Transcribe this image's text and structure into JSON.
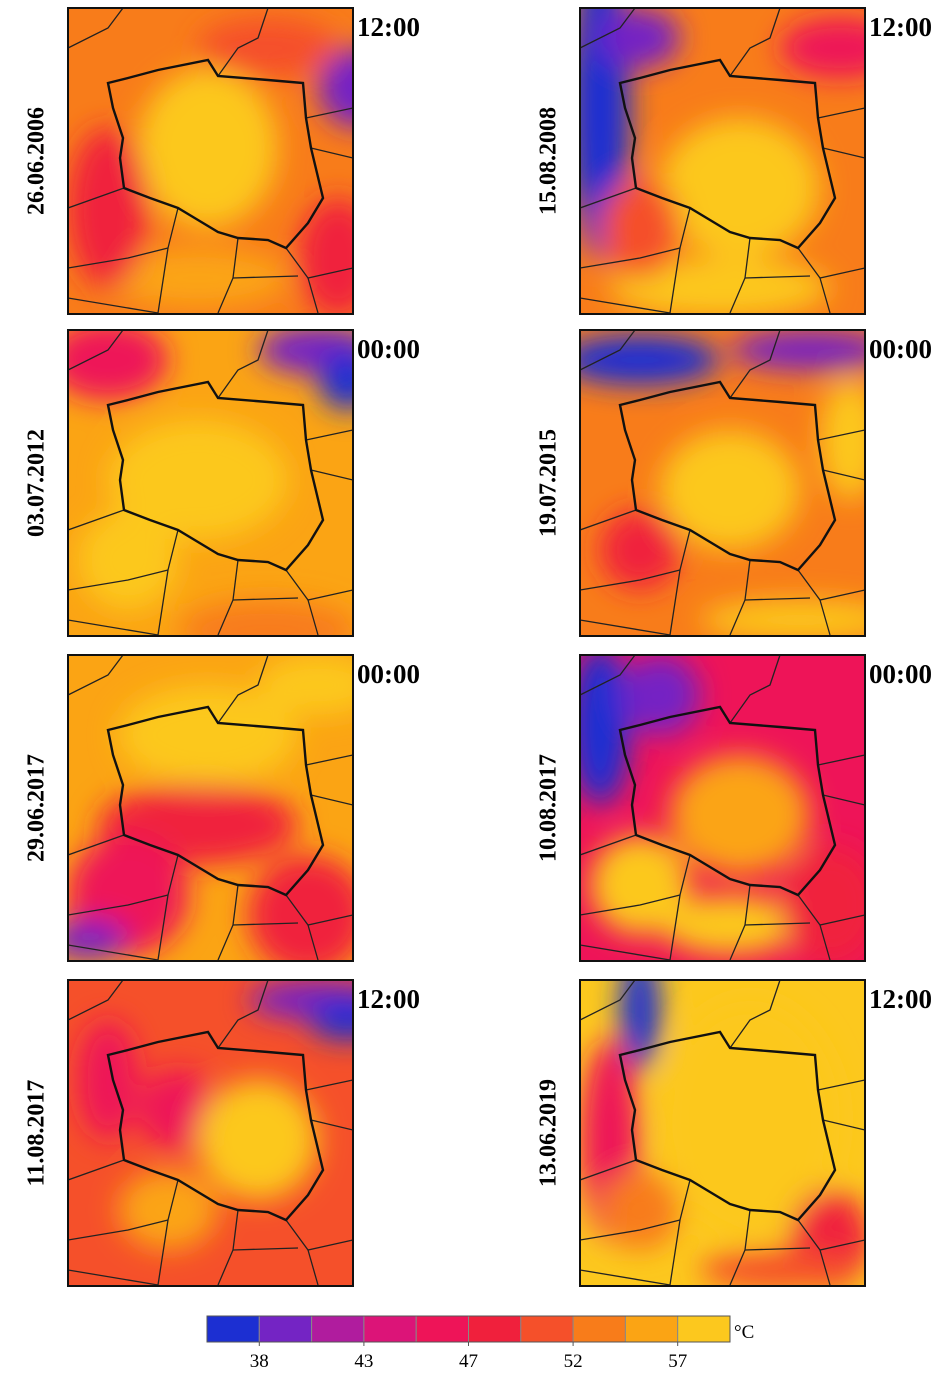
{
  "panels": [
    {
      "date": "26.06.2006",
      "time": "12:00"
    },
    {
      "date": "15.08.2008",
      "time": "12:00"
    },
    {
      "date": "03.07.2012",
      "time": "00:00"
    },
    {
      "date": "19.07.2015",
      "time": "00:00"
    },
    {
      "date": "29.06.2017",
      "time": "00:00"
    },
    {
      "date": "10.08.2017",
      "time": "00:00"
    },
    {
      "date": "11.08.2017",
      "time": "12:00"
    },
    {
      "date": "13.06.2019",
      "time": "12:00"
    }
  ],
  "colorbar": {
    "colors": [
      "#1c2fd2",
      "#7424c4",
      "#b01c9e",
      "#dc1478",
      "#ee1458",
      "#f0203c",
      "#f5502a",
      "#f87c1a",
      "#fba414",
      "#fcc81e"
    ],
    "ticks": [
      38,
      43,
      47,
      52,
      57
    ],
    "unit": "°C"
  }
}
